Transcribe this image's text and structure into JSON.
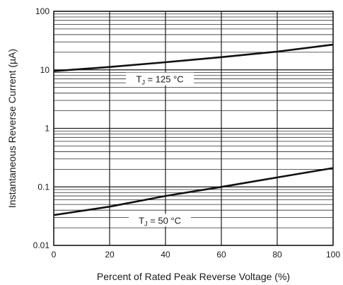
{
  "chart_data": {
    "type": "line",
    "xlabel": "Percent of Rated Peak Reverse Voltage (%)",
    "ylabel": "Instantaneous Reverse Current (µA)",
    "xlim": [
      0,
      100
    ],
    "ylim": [
      0.01,
      100
    ],
    "yscale": "log",
    "grid": true,
    "x_ticks": [
      "0",
      "20",
      "40",
      "60",
      "80",
      "100"
    ],
    "y_ticks": [
      "0.01",
      "0.1",
      "1",
      "10",
      "100"
    ],
    "series": [
      {
        "annotation": {
          "prefix": "T",
          "sub": "J",
          "text": " = 125 °C"
        },
        "x": [
          0,
          20,
          40,
          60,
          80,
          100
        ],
        "y": [
          9.5,
          11.2,
          13.5,
          16.5,
          20.5,
          27
        ]
      },
      {
        "annotation": {
          "prefix": "T",
          "sub": "J",
          "text": " = 50 °C"
        },
        "x": [
          0,
          20,
          40,
          60,
          80,
          100
        ],
        "y": [
          0.033,
          0.046,
          0.07,
          0.1,
          0.145,
          0.21
        ]
      }
    ]
  }
}
